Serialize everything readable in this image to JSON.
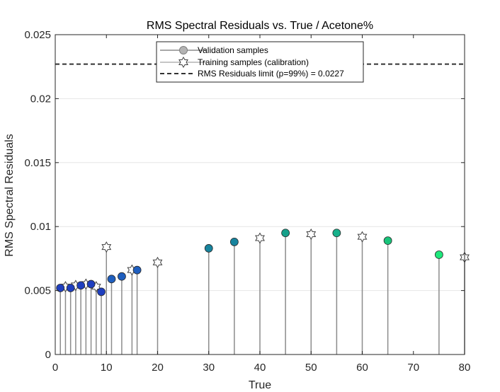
{
  "chart_data": {
    "type": "scatter",
    "title": "RMS Spectral Residuals vs. True / Acetone%",
    "xlabel": "True",
    "ylabel": "RMS Spectral Residuals",
    "xlim": [
      0,
      80
    ],
    "ylim": [
      0,
      0.025
    ],
    "xticks": [
      0,
      10,
      20,
      30,
      40,
      50,
      60,
      70,
      80
    ],
    "yticks": [
      0,
      0.005,
      0.01,
      0.015,
      0.02,
      0.025
    ],
    "ytick_labels": [
      "0",
      "0.005",
      "0.01",
      "0.015",
      "0.02",
      "0.025"
    ],
    "grid": "horizontal",
    "legend_position": "top-center",
    "series": [
      {
        "name": "Validation samples",
        "marker": "circle-stem",
        "x": [
          1,
          3,
          5,
          7,
          9,
          11,
          13,
          16,
          30,
          35,
          45,
          55,
          65,
          75
        ],
        "y": [
          0.0052,
          0.0052,
          0.0054,
          0.0055,
          0.0049,
          0.0059,
          0.0061,
          0.0066,
          0.0083,
          0.0088,
          0.0095,
          0.0095,
          0.0089,
          0.0078
        ],
        "colors": [
          "#1f3fbf",
          "#1f3fbf",
          "#1f3fbf",
          "#1f3fbf",
          "#1f3fbf",
          "#1f5fbf",
          "#1f5fbf",
          "#1f5fbf",
          "#17849e",
          "#17849e",
          "#16a08a",
          "#16b08a",
          "#18c47a",
          "#1ee87c"
        ]
      },
      {
        "name": "Training samples (calibration)",
        "marker": "hexagram-stem",
        "x": [
          2,
          4,
          6,
          8,
          10,
          15,
          20,
          40,
          50,
          60,
          80
        ],
        "y": [
          0.0053,
          0.0054,
          0.0055,
          0.0053,
          0.0084,
          0.0066,
          0.0072,
          0.0091,
          0.0094,
          0.0092,
          0.0076
        ]
      },
      {
        "name": "RMS Residuals limit (p=99%) = 0.0227",
        "marker": "dashed-line",
        "y": 0.0227
      }
    ],
    "colors": {
      "stem": "#8c8c8c",
      "limit_line": "#333333",
      "star_edge": "#404040",
      "axis": "#262626",
      "grid": "#e6e6e6"
    }
  }
}
